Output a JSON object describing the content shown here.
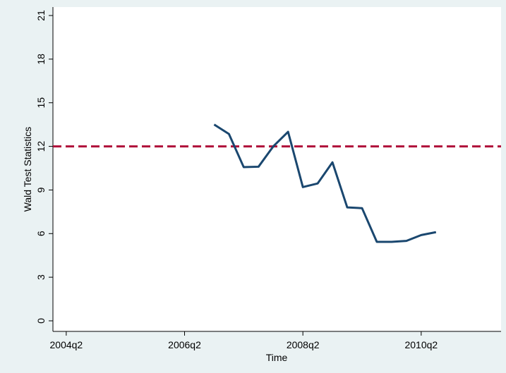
{
  "chart_data": {
    "type": "line",
    "x_label": "Time",
    "y_label": "Wald Test Statistics",
    "x": [
      187,
      188,
      189,
      190,
      191,
      192,
      193,
      194,
      195,
      196,
      197,
      198,
      199,
      200,
      201,
      202
    ],
    "series": [
      {
        "color": "#1a476f",
        "values": [
          13.5,
          12.85,
          10.57,
          10.6,
          12.0,
          13.0,
          9.2,
          9.45,
          10.9,
          7.8,
          7.75,
          5.43,
          5.43,
          5.5,
          5.9,
          6.1
        ]
      }
    ],
    "hline": 12,
    "hline_color": "#b0113a",
    "xlim": [
      176.1,
      206.4
    ],
    "xticks": [
      {
        "value": 177,
        "label": "2004q2"
      },
      {
        "value": 185,
        "label": "2006q2"
      },
      {
        "value": 193,
        "label": "2008q2"
      },
      {
        "value": 201,
        "label": "2010q2"
      }
    ],
    "ylim": [
      0,
      21
    ],
    "yticks": [
      0,
      3,
      6,
      9,
      12,
      15,
      18,
      21
    ]
  }
}
